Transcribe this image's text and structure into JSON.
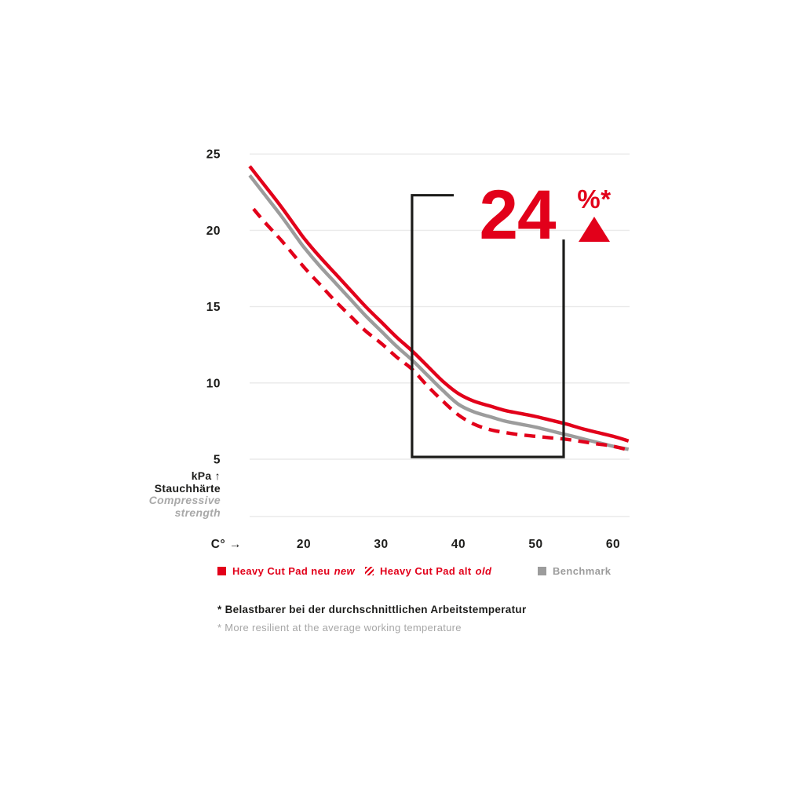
{
  "colors": {
    "accent_red": "#e2001a",
    "benchmark_gray": "#9c9c9c",
    "text_dark": "#1d1d1b",
    "text_light_gray": "#a6a6a6",
    "gridline": "#eaeaea"
  },
  "annotation": {
    "value": "24",
    "unit": "%*",
    "direction": "increase"
  },
  "axis": {
    "x_label": "C° →",
    "y_label_lines": [
      "kPa ↑",
      "Stauchhärte",
      "Compressive",
      "strength"
    ]
  },
  "legend": [
    {
      "label": "Heavy Cut Pad neu",
      "suffix": "new",
      "marker": "solid-red-square",
      "color": "#e2001a"
    },
    {
      "label": "Heavy Cut Pad alt",
      "suffix": "old",
      "marker": "hatched-red-square",
      "color": "#e2001a"
    },
    {
      "label": "Benchmark",
      "suffix": "",
      "marker": "solid-gray-square",
      "color": "#9c9c9c"
    }
  ],
  "footnotes": [
    {
      "text": "* Belastbarer bei der durchschnittlichen Arbeitstemperatur",
      "emphasis": "bold-dark"
    },
    {
      "text": "* More resilient at the average working temperature",
      "emphasis": "light-gray"
    }
  ],
  "chart_data": {
    "type": "line",
    "xlabel": "C°",
    "ylabel": "kPa — Stauchhärte / Compressive strength",
    "x_ticks": [
      20,
      30,
      40,
      50,
      60
    ],
    "y_gridlines": [
      25,
      20,
      15,
      10,
      5
    ],
    "x_range": [
      13,
      62
    ],
    "y_range": [
      5,
      25
    ],
    "grid": true,
    "legend_position": "bottom",
    "series": [
      {
        "name": "Heavy Cut Pad neu (new)",
        "style": "solid",
        "color": "#e2001a",
        "points": [
          [
            13,
            24.2
          ],
          [
            15,
            22.9
          ],
          [
            17,
            21.6
          ],
          [
            19,
            20.2
          ],
          [
            20,
            19.5
          ],
          [
            22,
            18.3
          ],
          [
            24,
            17.2
          ],
          [
            26,
            16.1
          ],
          [
            28,
            15.0
          ],
          [
            30,
            14.0
          ],
          [
            32,
            13.0
          ],
          [
            34,
            12.1
          ],
          [
            36,
            11.1
          ],
          [
            38,
            10.1
          ],
          [
            40,
            9.3
          ],
          [
            42,
            8.8
          ],
          [
            44,
            8.5
          ],
          [
            46,
            8.2
          ],
          [
            48,
            8.0
          ],
          [
            50,
            7.8
          ],
          [
            52,
            7.55
          ],
          [
            54,
            7.3
          ],
          [
            56,
            7.0
          ],
          [
            58,
            6.75
          ],
          [
            60,
            6.5
          ],
          [
            62,
            6.2
          ]
        ]
      },
      {
        "name": "Heavy Cut Pad alt (old)",
        "style": "dashed",
        "color": "#e2001a",
        "points": [
          [
            13.5,
            21.4
          ],
          [
            15,
            20.5
          ],
          [
            17,
            19.4
          ],
          [
            20,
            17.6
          ],
          [
            22,
            16.5
          ],
          [
            24,
            15.4
          ],
          [
            26,
            14.4
          ],
          [
            28,
            13.4
          ],
          [
            30,
            12.6
          ],
          [
            32,
            11.7
          ],
          [
            34,
            10.9
          ],
          [
            36,
            9.8
          ],
          [
            38,
            8.8
          ],
          [
            40,
            7.9
          ],
          [
            42,
            7.3
          ],
          [
            44,
            6.95
          ],
          [
            46,
            6.75
          ],
          [
            48,
            6.6
          ],
          [
            50,
            6.5
          ],
          [
            52,
            6.4
          ],
          [
            54,
            6.3
          ],
          [
            56,
            6.15
          ],
          [
            58,
            6.0
          ],
          [
            60,
            5.85
          ],
          [
            62,
            5.6
          ]
        ]
      },
      {
        "name": "Benchmark",
        "style": "solid",
        "color": "#9c9c9c",
        "points": [
          [
            13,
            23.6
          ],
          [
            15,
            22.3
          ],
          [
            17,
            21.0
          ],
          [
            19,
            19.6
          ],
          [
            20,
            18.9
          ],
          [
            22,
            17.7
          ],
          [
            24,
            16.6
          ],
          [
            26,
            15.5
          ],
          [
            28,
            14.4
          ],
          [
            30,
            13.4
          ],
          [
            32,
            12.4
          ],
          [
            34,
            11.5
          ],
          [
            36,
            10.5
          ],
          [
            38,
            9.5
          ],
          [
            40,
            8.6
          ],
          [
            42,
            8.1
          ],
          [
            44,
            7.8
          ],
          [
            46,
            7.5
          ],
          [
            48,
            7.3
          ],
          [
            50,
            7.1
          ],
          [
            52,
            6.85
          ],
          [
            54,
            6.6
          ],
          [
            56,
            6.35
          ],
          [
            58,
            6.1
          ],
          [
            60,
            5.85
          ],
          [
            62,
            5.65
          ]
        ]
      }
    ],
    "bracket": {
      "x_from_deg": 34,
      "x_to_deg": 53.6,
      "top_kpa": 22.3,
      "top_end_deg": 39.4,
      "right_start_kpa": 19.4,
      "bottom_kpa": 5.15
    }
  }
}
